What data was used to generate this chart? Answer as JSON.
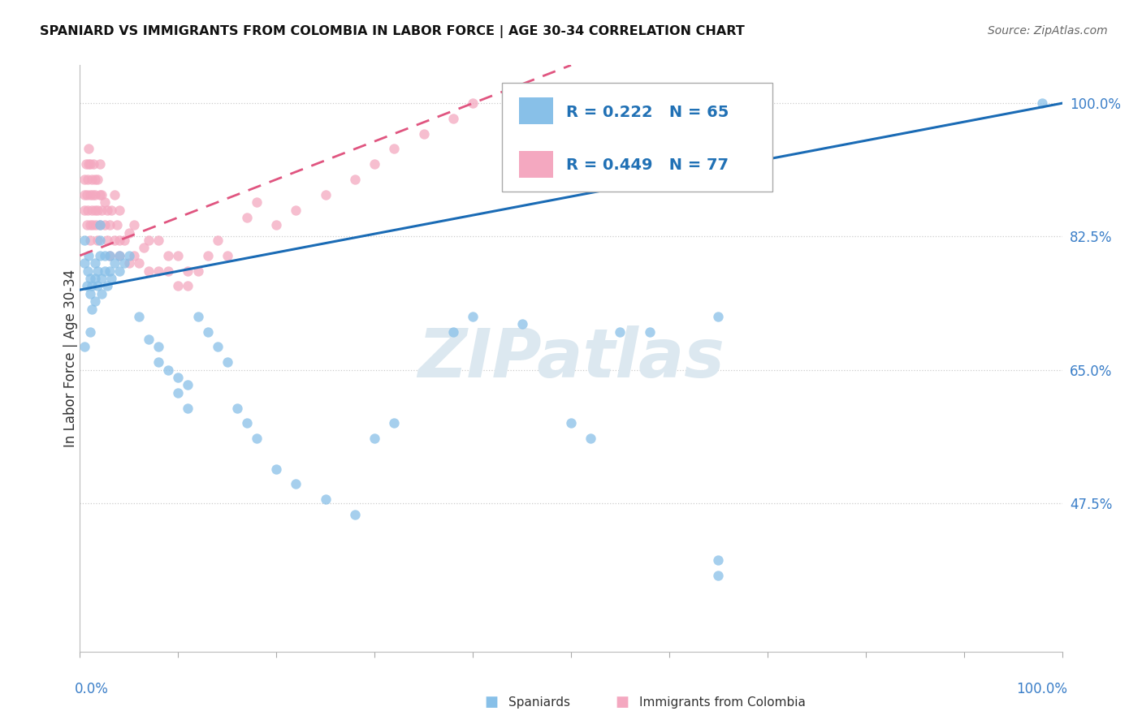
{
  "title": "SPANIARD VS IMMIGRANTS FROM COLOMBIA IN LABOR FORCE | AGE 30-34 CORRELATION CHART",
  "source": "Source: ZipAtlas.com",
  "ylabel": "In Labor Force | Age 30-34",
  "ytick_labels": [
    "47.5%",
    "65.0%",
    "82.5%",
    "100.0%"
  ],
  "ytick_values": [
    0.475,
    0.65,
    0.825,
    1.0
  ],
  "legend_spaniards": "Spaniards",
  "legend_colombia": "Immigrants from Colombia",
  "r_spaniards": 0.222,
  "n_spaniards": 65,
  "r_colombia": 0.449,
  "n_colombia": 77,
  "color_spaniards": "#88c0e8",
  "color_colombia": "#f4a8c0",
  "color_trendline_spaniards": "#1a6bb5",
  "color_trendline_colombia": "#e05580",
  "background_color": "#ffffff",
  "watermark_text": "ZIPatlas",
  "watermark_color": "#dce8f0",
  "xmin": 0.0,
  "xmax": 1.0,
  "ymin": 0.28,
  "ymax": 1.05,
  "trendline_sp_x0": 0.0,
  "trendline_sp_y0": 0.755,
  "trendline_sp_x1": 1.0,
  "trendline_sp_y1": 1.0,
  "trendline_co_x0": 0.0,
  "trendline_co_y0": 0.8,
  "trendline_co_x1": 0.5,
  "trendline_co_y1": 1.05
}
